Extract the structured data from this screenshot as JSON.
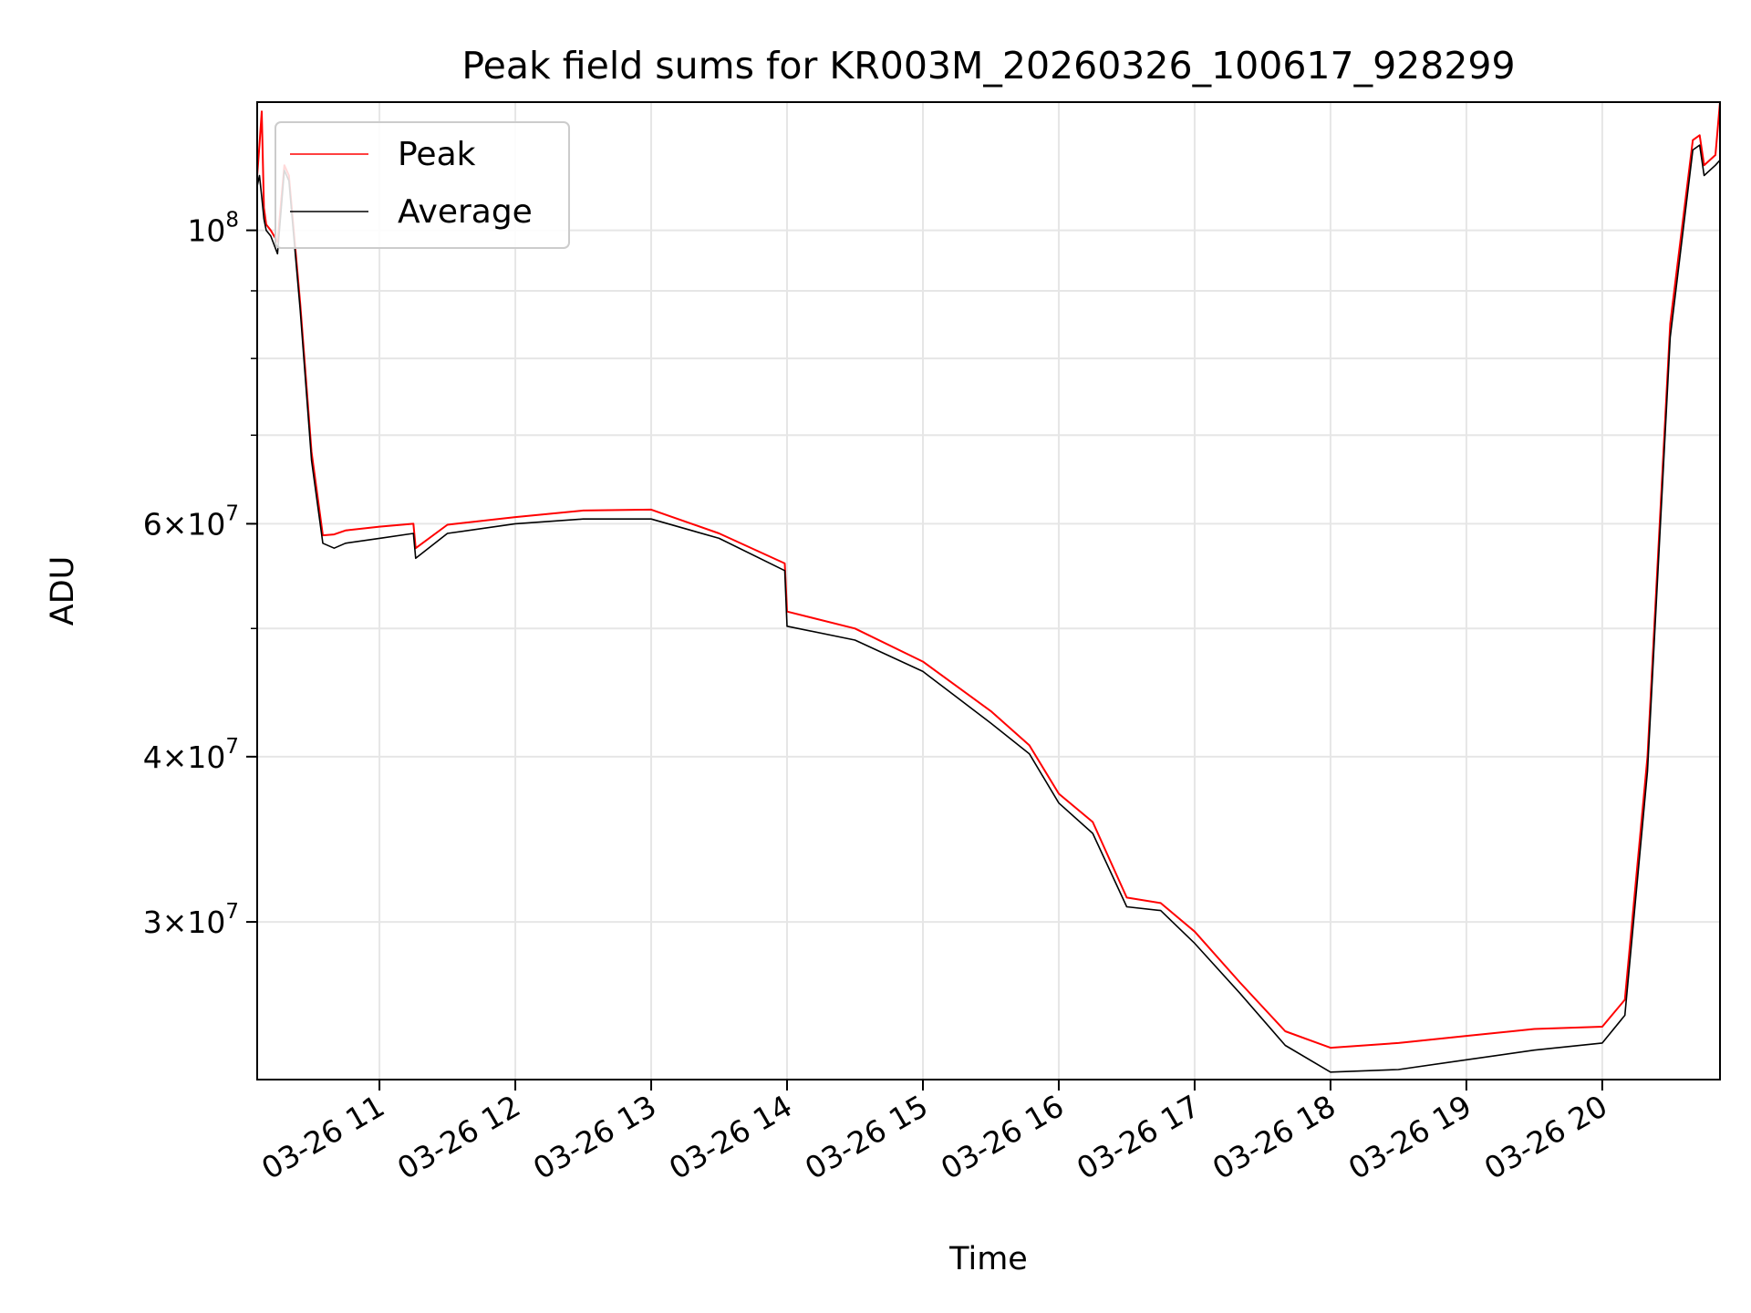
{
  "chart_data": {
    "type": "line",
    "title": "Peak field sums for KR003M_20260326_100617_928299",
    "xlabel": "Time",
    "ylabel": "ADU",
    "yscale": "log",
    "xlim": [
      "03-26 10:06",
      "03-26 20:52"
    ],
    "ylim": [
      22800000,
      125000000
    ],
    "grid": true,
    "legend_position": "top-left",
    "x_ticks": [
      "03-26 11",
      "03-26 12",
      "03-26 13",
      "03-26 14",
      "03-26 15",
      "03-26 16",
      "03-26 17",
      "03-26 18",
      "03-26 19",
      "03-26 20"
    ],
    "y_ticks": [
      {
        "value": 30000000,
        "mantissa": "3",
        "exponent": "7"
      },
      {
        "value": 40000000,
        "mantissa": "4",
        "exponent": "7"
      },
      {
        "value": 60000000,
        "mantissa": "6",
        "exponent": "7"
      },
      {
        "value": 100000000,
        "mantissa": "",
        "exponent": "8"
      }
    ],
    "series": [
      {
        "name": "Peak",
        "color": "#ff0000",
        "x": [
          "03-26 10:06",
          "03-26 10:07",
          "03-26 10:08",
          "03-26 10:09",
          "03-26 10:10",
          "03-26 10:12",
          "03-26 10:15",
          "03-26 10:18",
          "03-26 10:20",
          "03-26 10:25",
          "03-26 10:30",
          "03-26 10:35",
          "03-26 10:40",
          "03-26 10:45",
          "03-26 11:00",
          "03-26 11:15",
          "03-26 11:16",
          "03-26 11:30",
          "03-26 12:00",
          "03-26 12:30",
          "03-26 13:00",
          "03-26 13:30",
          "03-26 13:59",
          "03-26 14:00",
          "03-26 14:30",
          "03-26 15:00",
          "03-26 15:30",
          "03-26 15:47",
          "03-26 16:00",
          "03-26 16:15",
          "03-26 16:30",
          "03-26 16:45",
          "03-26 17:00",
          "03-26 17:20",
          "03-26 17:40",
          "03-26 18:00",
          "03-26 18:30",
          "03-26 19:00",
          "03-26 19:30",
          "03-26 20:00",
          "03-26 20:10",
          "03-26 20:20",
          "03-26 20:30",
          "03-26 20:40",
          "03-26 20:43",
          "03-26 20:45",
          "03-26 20:50",
          "03-26 20:52"
        ],
        "values": [
          110000000,
          116000000,
          123000000,
          104000000,
          101000000,
          100000000,
          98000000,
          112000000,
          110000000,
          88000000,
          68000000,
          58800000,
          58900000,
          59300000,
          59700000,
          60000000,
          57500000,
          59900000,
          60700000,
          61400000,
          61500000,
          59000000,
          56000000,
          51500000,
          50000000,
          47200000,
          43300000,
          40800000,
          37500000,
          35700000,
          31300000,
          31000000,
          29500000,
          27000000,
          24800000,
          24100000,
          24300000,
          24600000,
          24900000,
          25000000,
          26200000,
          40000000,
          85000000,
          117000000,
          118000000,
          112000000,
          114000000,
          125000000
        ]
      },
      {
        "name": "Average",
        "color": "#000000",
        "x": [
          "03-26 10:06",
          "03-26 10:07",
          "03-26 10:08",
          "03-26 10:09",
          "03-26 10:10",
          "03-26 10:12",
          "03-26 10:15",
          "03-26 10:18",
          "03-26 10:20",
          "03-26 10:25",
          "03-26 10:30",
          "03-26 10:35",
          "03-26 10:40",
          "03-26 10:45",
          "03-26 11:00",
          "03-26 11:15",
          "03-26 11:16",
          "03-26 11:30",
          "03-26 12:00",
          "03-26 12:30",
          "03-26 13:00",
          "03-26 13:30",
          "03-26 13:59",
          "03-26 14:00",
          "03-26 14:30",
          "03-26 15:00",
          "03-26 15:30",
          "03-26 15:47",
          "03-26 16:00",
          "03-26 16:15",
          "03-26 16:30",
          "03-26 16:45",
          "03-26 17:00",
          "03-26 17:20",
          "03-26 17:40",
          "03-26 18:00",
          "03-26 18:30",
          "03-26 19:00",
          "03-26 19:30",
          "03-26 20:00",
          "03-26 20:10",
          "03-26 20:20",
          "03-26 20:30",
          "03-26 20:40",
          "03-26 20:43",
          "03-26 20:45",
          "03-26 20:50",
          "03-26 20:52"
        ],
        "values": [
          108000000,
          110000000,
          106000000,
          102000000,
          100000000,
          99000000,
          96000000,
          111000000,
          109000000,
          87000000,
          67000000,
          58000000,
          57500000,
          58000000,
          58500000,
          59000000,
          56500000,
          59000000,
          60000000,
          60500000,
          60500000,
          58500000,
          55300000,
          50200000,
          49000000,
          46400000,
          42400000,
          40200000,
          36900000,
          35000000,
          30800000,
          30600000,
          28900000,
          26500000,
          24200000,
          23100000,
          23200000,
          23600000,
          24000000,
          24300000,
          25500000,
          39000000,
          83000000,
          115000000,
          116000000,
          110000000,
          112000000,
          113000000
        ]
      }
    ]
  }
}
